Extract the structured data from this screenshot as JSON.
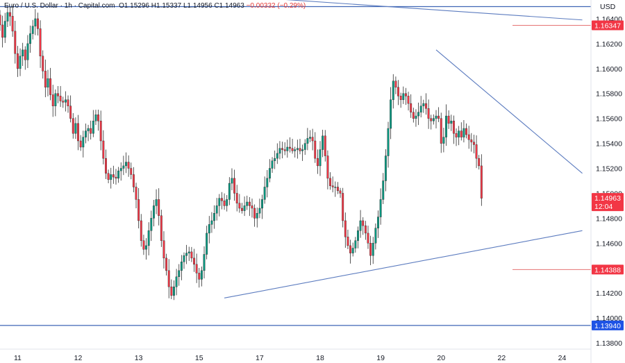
{
  "legend": {
    "symbol": "Euro / U.S. Dollar · 1h · Capital.com",
    "open": "O1.15296",
    "high": "H1.15337",
    "low": "L1.14956",
    "close": "C1.14963",
    "change": "−0.00332 (−0.29%)"
  },
  "colors": {
    "up": "#089981",
    "down": "#f23645",
    "trendline": "#5b7bbf",
    "hline": "#3f66b5",
    "red_line": "#e57373",
    "price_label_bg": "#f23645",
    "blue_label_bg": "#1e53e5"
  },
  "chart_data": {
    "type": "candlestick",
    "currency_label": "USD",
    "y_ticks": [
      "1.13800",
      "1.14000",
      "1.14200",
      "1.14600",
      "1.14800",
      "1.15000",
      "1.15200",
      "1.15400",
      "1.15600",
      "1.15800",
      "1.16000",
      "1.16200",
      "1.16400"
    ],
    "ylim": [
      1.1375,
      1.1655
    ],
    "x_ticks": [
      "11",
      "12",
      "13",
      "15",
      "17",
      "18",
      "19",
      "20",
      "22",
      "24"
    ],
    "x_tick_index": [
      7,
      31,
      55,
      79,
      103,
      127,
      151,
      175,
      199,
      223
    ],
    "horizontal_lines": [
      {
        "price": 1.16347,
        "label": "1.16347",
        "style": "red-short"
      },
      {
        "price": 1.14388,
        "label": "1.14388",
        "style": "red-short"
      },
      {
        "price": 1.1394,
        "label": "1.13940",
        "style": "blue-full"
      },
      {
        "price": 1.16497,
        "label": "",
        "style": "blue-full"
      }
    ],
    "current_price": {
      "price": 1.14963,
      "label": "1.14963",
      "countdown": "12:04"
    },
    "trendlines": [
      {
        "from": [
          -7,
          1.1672
        ],
        "to": [
          231,
          1.1639
        ]
      },
      {
        "from": [
          173,
          1.1615
        ],
        "to": [
          231,
          1.1516
        ]
      },
      {
        "from": [
          89,
          1.1416
        ],
        "to": [
          231,
          1.147
        ]
      }
    ],
    "close": [
      1.1635,
      1.1625,
      1.1638,
      1.1645,
      1.1642,
      1.163,
      1.1612,
      1.16,
      1.161,
      1.1615,
      1.1607,
      1.162,
      1.1628,
      1.1634,
      1.164,
      1.1632,
      1.161,
      1.1598,
      1.1585,
      1.1592,
      1.1579,
      1.157,
      1.158,
      1.1578,
      1.1574,
      1.1573,
      1.1575,
      1.157,
      1.156,
      1.1548,
      1.1556,
      1.1542,
      1.1537,
      1.1545,
      1.155,
      1.1552,
      1.1548,
      1.1558,
      1.1563,
      1.1558,
      1.1542,
      1.1528,
      1.1516,
      1.1511,
      1.1515,
      1.1513,
      1.1512,
      1.1518,
      1.152,
      1.1522,
      1.1525,
      1.152,
      1.1515,
      1.1505,
      1.1495,
      1.1478,
      1.1462,
      1.1455,
      1.1458,
      1.147,
      1.148,
      1.149,
      1.1495,
      1.1482,
      1.1462,
      1.1448,
      1.1438,
      1.1425,
      1.1418,
      1.1425,
      1.1433,
      1.1438,
      1.1445,
      1.145,
      1.1452,
      1.1453,
      1.1448,
      1.1443,
      1.1436,
      1.1431,
      1.1438,
      1.1451,
      1.1468,
      1.1475,
      1.1478,
      1.1484,
      1.149,
      1.1496,
      1.1494,
      1.149,
      1.1495,
      1.1508,
      1.1512,
      1.15,
      1.1492,
      1.1488,
      1.1486,
      1.149,
      1.1493,
      1.149,
      1.1488,
      1.148,
      1.1484,
      1.1488,
      1.1495,
      1.1505,
      1.1512,
      1.152,
      1.1526,
      1.1528,
      1.1532,
      1.1536,
      1.1535,
      1.1534,
      1.1537,
      1.1536,
      1.1534,
      1.1535,
      1.1536,
      1.1534,
      1.1535,
      1.154,
      1.1544,
      1.1545,
      1.1542,
      1.1528,
      1.1522,
      1.1535,
      1.1546,
      1.153,
      1.1512,
      1.1506,
      1.1505,
      1.1505,
      1.1502,
      1.15,
      1.1478,
      1.1465,
      1.1458,
      1.1452,
      1.1456,
      1.1462,
      1.147,
      1.1478,
      1.1474,
      1.1468,
      1.146,
      1.145,
      1.146,
      1.1472,
      1.1481,
      1.1495,
      1.151,
      1.153,
      1.1552,
      1.1575,
      1.159,
      1.1585,
      1.1578,
      1.1575,
      1.158,
      1.1578,
      1.1572,
      1.1565,
      1.156,
      1.1562,
      1.1565,
      1.157,
      1.1572,
      1.1568,
      1.156,
      1.1558,
      1.156,
      1.1562,
      1.156,
      1.154,
      1.1545,
      1.1562,
      1.1556,
      1.1558,
      1.1548,
      1.1545,
      1.155,
      1.1545,
      1.1552,
      1.1547,
      1.1543,
      1.1541,
      1.1539,
      1.1528,
      1.1522,
      1.1496
    ]
  }
}
